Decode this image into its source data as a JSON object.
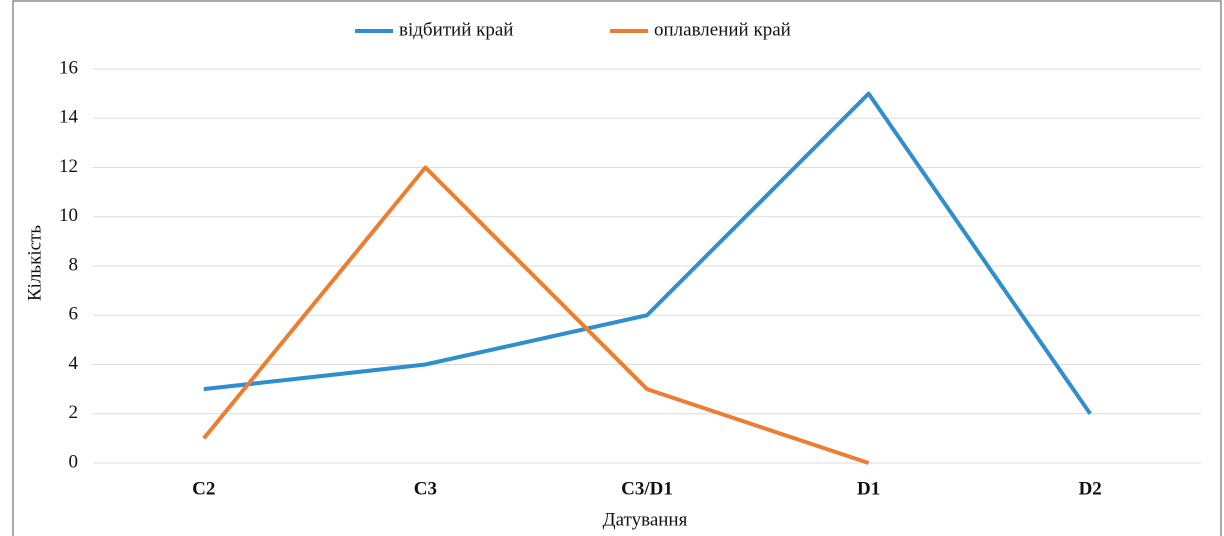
{
  "chart_data": {
    "type": "line",
    "x_label": "Датування",
    "y_label": "Кількість",
    "categories": [
      "C2",
      "C3",
      "C3/D1",
      "D1",
      "D2"
    ],
    "series": [
      {
        "name": "відбитий край",
        "color": "#2e8fcc",
        "values": [
          3,
          4,
          6,
          15,
          2
        ]
      },
      {
        "name": "оплавлений край",
        "color": "#ed7d31",
        "values": [
          1,
          12,
          3,
          0,
          null
        ]
      }
    ],
    "ylim": [
      0,
      16
    ],
    "yticks": [
      0,
      2,
      4,
      6,
      8,
      10,
      12,
      14,
      16
    ],
    "grid": true,
    "legend": "top"
  }
}
